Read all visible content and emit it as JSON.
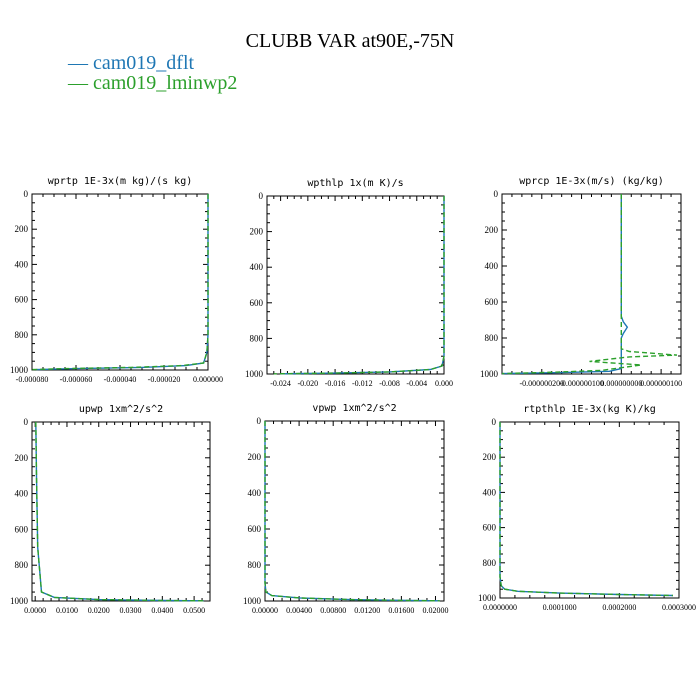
{
  "figure": {
    "title": "CLUBB VAR at90E,-75N",
    "legend": [
      {
        "label": "cam019_dflt",
        "color": "#1f77b4"
      },
      {
        "label": "cam019_lminwp2",
        "color": "#2ca02c"
      }
    ]
  },
  "chart_data": [
    {
      "type": "line",
      "title": "wprtp  1E-3x(m kg)/(s kg)",
      "xlim": [
        -8e-05,
        0.0
      ],
      "ylim": [
        1000,
        0
      ],
      "xticks": [
        "-0.000080",
        "-0.000060",
        "-0.000040",
        "-0.000020",
        "0.000000"
      ],
      "yticks": [
        "0",
        "200",
        "400",
        "600",
        "800",
        "1000"
      ],
      "series": [
        {
          "name": "cam019_dflt",
          "color": "#1f77b4",
          "dash": false,
          "x": [
            0,
            0,
            -5e-07,
            -2e-06,
            -1e-05,
            -3e-05,
            -6e-05,
            -7.8e-05
          ],
          "y": [
            0,
            800,
            900,
            960,
            975,
            985,
            992,
            998
          ]
        },
        {
          "name": "cam019_lminwp2",
          "color": "#2ca02c",
          "dash": true,
          "x": [
            0,
            0,
            -5e-07,
            -2e-06,
            -1.2e-05,
            -3.5e-05,
            -6.5e-05,
            -8e-05
          ],
          "y": [
            0,
            800,
            900,
            960,
            975,
            985,
            992,
            998
          ]
        }
      ]
    },
    {
      "type": "line",
      "title": "wpthlp  1x(m K)/s",
      "xlim": [
        -0.026,
        0.0
      ],
      "ylim": [
        1000,
        0
      ],
      "xticks": [
        "-0.024",
        "-0.020",
        "-0.016",
        "-0.012",
        "-0.008",
        "-0.004",
        "0.000"
      ],
      "yticks": [
        "0",
        "200",
        "400",
        "600",
        "800",
        "1000"
      ],
      "series": [
        {
          "name": "cam019_dflt",
          "color": "#1f77b4",
          "dash": false,
          "x": [
            0,
            0,
            -0.0003,
            -0.002,
            -0.008,
            -0.016,
            -0.024
          ],
          "y": [
            0,
            900,
            955,
            975,
            988,
            995,
            999
          ]
        },
        {
          "name": "cam019_lminwp2",
          "color": "#2ca02c",
          "dash": true,
          "x": [
            0,
            0,
            -0.0003,
            -0.002,
            -0.008,
            -0.016,
            -0.025
          ],
          "y": [
            0,
            900,
            955,
            975,
            988,
            995,
            999
          ]
        }
      ]
    },
    {
      "type": "line",
      "title": "wprcp  1E-3x(m/s) (kg/kg)",
      "xlim": [
        -3e-07,
        1.5e-07
      ],
      "ylim": [
        1000,
        0
      ],
      "xticks": [
        "-0.000000200",
        "-0.000000100",
        "0.000000000",
        "0.000000100"
      ],
      "yticks": [
        "0",
        "200",
        "400",
        "600",
        "800",
        "1000"
      ],
      "series": [
        {
          "name": "cam019_dflt",
          "color": "#1f77b4",
          "dash": false,
          "x": [
            0,
            0,
            5e-09,
            1.5e-08,
            5e-09,
            0,
            0,
            -3e-08,
            -1.5e-07,
            -3e-07
          ],
          "y": [
            0,
            680,
            710,
            740,
            775,
            800,
            970,
            985,
            992,
            998
          ]
        },
        {
          "name": "cam019_lminwp2",
          "color": "#2ca02c",
          "dash": true,
          "x": [
            0,
            0,
            2e-08,
            1.4e-07,
            2e-08,
            -8e-08,
            5e-08,
            0,
            -5e-08,
            -1.7e-07,
            -3e-07
          ],
          "y": [
            0,
            860,
            875,
            895,
            905,
            930,
            950,
            965,
            980,
            990,
            998
          ]
        }
      ]
    },
    {
      "type": "line",
      "title": "upwp  1xm^2/s^2",
      "xlim": [
        -0.001,
        0.055
      ],
      "ylim": [
        1000,
        0
      ],
      "xticks": [
        "0.0000",
        "0.0100",
        "0.0200",
        "0.0300",
        "0.0400",
        "0.0500"
      ],
      "yticks": [
        "0",
        "200",
        "400",
        "600",
        "800",
        "1000"
      ],
      "series": [
        {
          "name": "cam019_dflt",
          "color": "#1f77b4",
          "dash": false,
          "x": [
            0.0002,
            0.0004,
            0.0008,
            0.002,
            0.006,
            0.02,
            0.04,
            0.053
          ],
          "y": [
            0,
            300,
            700,
            950,
            980,
            992,
            997,
            999
          ]
        },
        {
          "name": "cam019_lminwp2",
          "color": "#2ca02c",
          "dash": true,
          "x": [
            0.0002,
            0.0004,
            0.0008,
            0.002,
            0.006,
            0.02,
            0.04,
            0.053
          ],
          "y": [
            0,
            300,
            700,
            950,
            980,
            992,
            997,
            999
          ]
        }
      ]
    },
    {
      "type": "line",
      "title": "vpwp  1xm^2/s^2",
      "xlim": [
        0.0,
        0.021
      ],
      "ylim": [
        1000,
        0
      ],
      "xticks": [
        "0.00000",
        "0.00400",
        "0.00800",
        "0.01200",
        "0.01600",
        "0.02000"
      ],
      "yticks": [
        "0",
        "200",
        "400",
        "600",
        "800",
        "1000"
      ],
      "series": [
        {
          "name": "cam019_dflt",
          "color": "#1f77b4",
          "dash": false,
          "x": [
            0,
            0,
            0.0001,
            0.0008,
            0.004,
            0.01,
            0.017,
            0.0205
          ],
          "y": [
            0,
            900,
            950,
            970,
            983,
            992,
            997,
            999
          ]
        },
        {
          "name": "cam019_lminwp2",
          "color": "#2ca02c",
          "dash": true,
          "x": [
            0,
            0,
            0.0001,
            0.0008,
            0.004,
            0.01,
            0.017,
            0.0205
          ],
          "y": [
            0,
            900,
            950,
            970,
            983,
            992,
            997,
            999
          ]
        }
      ]
    },
    {
      "type": "line",
      "title": "rtpthlp  1E-3x(kg K)/kg",
      "xlim": [
        0.0,
        0.0003
      ],
      "ylim": [
        1000,
        0
      ],
      "xticks": [
        "0.0000000",
        "0.0001000",
        "0.0002000",
        "0.0003000"
      ],
      "yticks": [
        "0",
        "200",
        "400",
        "600",
        "800",
        "1000"
      ],
      "series": [
        {
          "name": "cam019_dflt",
          "color": "#1f77b4",
          "dash": false,
          "x": [
            0,
            0,
            2e-06,
            8e-06,
            3e-05,
            0.0001,
            0.0002,
            0.00029
          ],
          "y": [
            0,
            880,
            930,
            950,
            962,
            972,
            980,
            986
          ]
        },
        {
          "name": "cam019_lminwp2",
          "color": "#2ca02c",
          "dash": true,
          "x": [
            0,
            0,
            2e-06,
            8e-06,
            3e-05,
            0.0001,
            0.0002,
            0.00029
          ],
          "y": [
            0,
            880,
            930,
            950,
            962,
            972,
            980,
            986
          ]
        }
      ]
    }
  ]
}
